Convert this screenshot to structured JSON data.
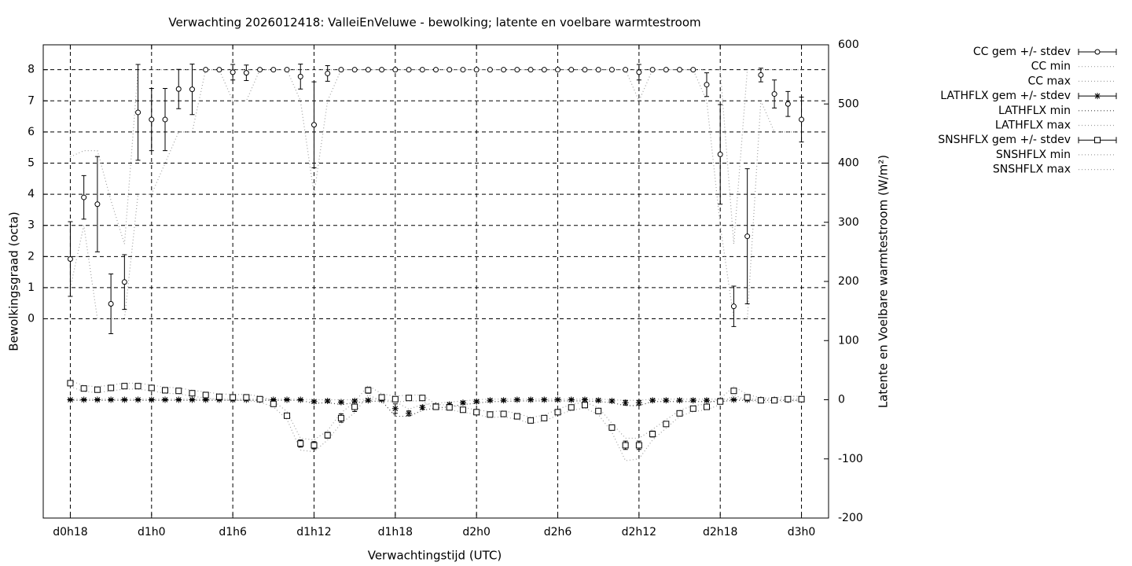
{
  "chart_data": {
    "type": "line",
    "title": "Verwachting 2026012418: ValleiEnVeluwe - bewolking; latente en voelbare warmtestroom",
    "xlabel": "Verwachtingstijd (UTC)",
    "ylabel": "Bewolkingsgraad (octa)",
    "y2label": "Latente en Voelbare warmtestroom (W/m²)",
    "xlim": [
      16,
      74
    ],
    "xticks": [
      {
        "value": 18,
        "label": "d0h18"
      },
      {
        "value": 24,
        "label": "d1h0"
      },
      {
        "value": 30,
        "label": "d1h6"
      },
      {
        "value": 36,
        "label": "d1h12"
      },
      {
        "value": 42,
        "label": "d1h18"
      },
      {
        "value": 48,
        "label": "d2h0"
      },
      {
        "value": 54,
        "label": "d2h6"
      },
      {
        "value": 60,
        "label": "d2h12"
      },
      {
        "value": 66,
        "label": "d2h18"
      },
      {
        "value": 72,
        "label": "d3h0"
      }
    ],
    "ylim": [
      -6.4,
      8.8
    ],
    "yticks": [
      0,
      1,
      2,
      3,
      4,
      5,
      6,
      7,
      8
    ],
    "y2lim": [
      -200,
      600
    ],
    "y2ticks": [
      -200,
      -100,
      0,
      100,
      200,
      300,
      400,
      500,
      600
    ],
    "grid": true,
    "x": [
      18,
      19,
      20,
      21,
      22,
      23,
      24,
      25,
      26,
      27,
      28,
      29,
      30,
      31,
      32,
      33,
      34,
      35,
      36,
      37,
      38,
      39,
      40,
      41,
      42,
      43,
      44,
      45,
      46,
      47,
      48,
      49,
      50,
      51,
      52,
      53,
      54,
      55,
      56,
      57,
      58,
      59,
      60,
      61,
      62,
      63,
      64,
      65,
      66,
      67,
      68,
      69,
      70,
      71,
      72
    ],
    "series": [
      {
        "name": "CC gem +/- stdev",
        "color": "#000000",
        "marker": "circle",
        "values": [
          1.92,
          3.9,
          3.68,
          0.48,
          1.18,
          6.63,
          6.4,
          6.4,
          7.38,
          7.37,
          8,
          8,
          7.92,
          7.9,
          8,
          8,
          8,
          7.78,
          6.23,
          7.88,
          8,
          8,
          8,
          8,
          8,
          8,
          8,
          8,
          8,
          8,
          8,
          8,
          8,
          8,
          8,
          8,
          8,
          8,
          8,
          8,
          8,
          8,
          7.92,
          8,
          8,
          8,
          8,
          7.52,
          5.28,
          0.4,
          2.65,
          7.83,
          7.22,
          6.9,
          6.4
        ],
        "errors": [
          1.2,
          0.7,
          1.53,
          0.96,
          0.88,
          1.54,
          1.0,
          1.0,
          0.63,
          0.81,
          0,
          0,
          0.25,
          0.25,
          0,
          0,
          0,
          0.4,
          1.38,
          0.25,
          0,
          0,
          0,
          0,
          0,
          0,
          0,
          0,
          0,
          0,
          0,
          0,
          0,
          0,
          0,
          0,
          0,
          0,
          0,
          0,
          0,
          0,
          0.25,
          0,
          0,
          0,
          0,
          0.38,
          1.6,
          0.65,
          2.17,
          0.22,
          0.45,
          0.4,
          0.72
        ]
      },
      {
        "name": "CC min",
        "color": "#a0a0a0",
        "values": [
          1,
          3,
          0,
          0,
          0,
          4,
          4,
          5,
          6,
          6,
          8,
          8,
          7,
          7,
          8,
          8,
          8,
          7,
          4,
          7,
          8,
          8,
          8,
          8,
          8,
          8,
          8,
          8,
          8,
          8,
          8,
          8,
          8,
          8,
          8,
          8,
          8,
          8,
          8,
          8,
          8,
          8,
          7,
          8,
          8,
          8,
          8,
          7,
          3,
          0,
          0,
          7,
          6,
          6,
          6
        ]
      },
      {
        "name": "CC max",
        "color": "#a0a0a0",
        "values": [
          5.2,
          5.4,
          5.4,
          3.8,
          2.4,
          8,
          8,
          8,
          8,
          8,
          8,
          8,
          8,
          8,
          8,
          8,
          8,
          8,
          8,
          8,
          8,
          8,
          8,
          8,
          8,
          8,
          8,
          8,
          8,
          8,
          8,
          8,
          8,
          8,
          8,
          8,
          8,
          8,
          8,
          8,
          8,
          8,
          8,
          8,
          8,
          8,
          8,
          8,
          8,
          2.4,
          8,
          8,
          8,
          8,
          8
        ]
      },
      {
        "name": "LATHFLX gem +/- stdev",
        "color": "#000000",
        "marker": "star",
        "axis": "y2",
        "values": [
          0,
          0,
          0,
          0,
          0,
          0,
          0,
          0,
          0,
          0,
          0,
          0,
          0,
          0,
          0,
          0,
          0,
          0,
          -3,
          -2,
          -4,
          -2,
          -1,
          0,
          -15,
          -23,
          -13,
          -10,
          -8,
          -5,
          -3,
          -1,
          -1,
          0,
          0,
          0,
          0,
          0,
          0,
          -1,
          -2,
          -5,
          -5,
          -1,
          -1,
          -1,
          -1,
          -1,
          -1,
          0,
          0,
          0,
          0,
          0,
          0
        ],
        "errors": [
          1,
          1,
          1,
          1,
          1,
          1,
          1,
          1,
          1,
          1,
          1,
          1,
          1,
          1,
          1,
          1,
          1,
          1,
          2,
          2,
          2,
          2,
          2,
          2,
          8,
          4,
          3,
          2,
          2,
          2,
          2,
          2,
          2,
          2,
          2,
          2,
          2,
          2,
          2,
          2,
          2,
          4,
          4,
          2,
          2,
          2,
          2,
          2,
          2,
          1,
          1,
          1,
          1,
          1,
          1
        ]
      },
      {
        "name": "LATHFLX min",
        "color": "#404040",
        "axis": "y2",
        "values": [
          -1,
          -1,
          -1,
          -1,
          -1,
          -1,
          -1,
          -1,
          -1,
          -1,
          -1,
          -1,
          -1,
          -1,
          -1,
          -1,
          -1,
          -1,
          -6,
          -5,
          -8,
          -5,
          -3,
          -2,
          -28,
          -28,
          -18,
          -14,
          -12,
          -8,
          -6,
          -3,
          -3,
          -2,
          -2,
          -2,
          -2,
          -2,
          -2,
          -3,
          -5,
          -10,
          -10,
          -3,
          -3,
          -3,
          -3,
          -3,
          -3,
          -1,
          -1,
          -1,
          -1,
          -1,
          -1
        ]
      },
      {
        "name": "LATHFLX max",
        "color": "#a0a0a0",
        "axis": "y2",
        "values": [
          1,
          1,
          1,
          1,
          1,
          1,
          1,
          1,
          1,
          1,
          1,
          1,
          1,
          1,
          1,
          1,
          1,
          1,
          0,
          0,
          0,
          0,
          1,
          1,
          -3,
          -16,
          -8,
          -6,
          -4,
          -2,
          0,
          1,
          1,
          1,
          1,
          1,
          1,
          1,
          1,
          1,
          0,
          -1,
          -1,
          1,
          1,
          1,
          1,
          1,
          1,
          1,
          1,
          1,
          1,
          1,
          1
        ]
      },
      {
        "name": "SNSHFLX gem +/- stdev",
        "color": "#000000",
        "marker": "square",
        "axis": "y2",
        "values": [
          28,
          19,
          17,
          20,
          23,
          23,
          20,
          16,
          15,
          11,
          8,
          5,
          4,
          4,
          1,
          -7,
          -27,
          -74,
          -77,
          -60,
          -31,
          -12,
          16,
          4,
          1,
          3,
          3,
          -12,
          -13,
          -17,
          -21,
          -25,
          -24,
          -28,
          -35,
          -31,
          -21,
          -13,
          -9,
          -19,
          -47,
          -77,
          -77,
          -58,
          -41,
          -23,
          -15,
          -12,
          -3,
          15,
          4,
          -1,
          -1,
          1,
          1
        ],
        "errors": [
          3,
          2,
          2,
          2,
          2,
          2,
          2,
          2,
          2,
          2,
          2,
          2,
          2,
          2,
          2,
          2,
          2,
          6,
          6,
          5,
          7,
          8,
          5,
          2,
          2,
          2,
          2,
          2,
          2,
          2,
          2,
          2,
          2,
          2,
          2,
          2,
          2,
          2,
          2,
          2,
          2,
          7,
          7,
          5,
          2,
          2,
          2,
          2,
          2,
          2,
          2,
          2,
          2,
          2,
          2
        ]
      },
      {
        "name": "SNSHFLX min",
        "color": "#a0a0a0",
        "axis": "y2",
        "values": [
          22,
          14,
          12,
          15,
          18,
          18,
          15,
          11,
          10,
          6,
          3,
          0,
          -1,
          -1,
          -4,
          -12,
          -33,
          -85,
          -88,
          -68,
          -40,
          -22,
          8,
          -2,
          -4,
          -2,
          -2,
          -16,
          -17,
          -21,
          -25,
          -30,
          -29,
          -33,
          -40,
          -36,
          -26,
          -18,
          -14,
          -25,
          -55,
          -103,
          -100,
          -68,
          -48,
          -28,
          -20,
          -17,
          -8,
          8,
          -1,
          -4,
          -4,
          -2,
          -2
        ]
      },
      {
        "name": "SNSHFLX max",
        "color": "#a0a0a0",
        "axis": "y2",
        "values": [
          32,
          24,
          22,
          25,
          28,
          28,
          25,
          21,
          20,
          16,
          13,
          10,
          9,
          9,
          6,
          -2,
          -20,
          -65,
          -68,
          -52,
          -22,
          -4,
          24,
          10,
          6,
          8,
          8,
          -8,
          -9,
          -13,
          -17,
          -20,
          -19,
          -23,
          -30,
          -26,
          -16,
          -8,
          -4,
          -13,
          -40,
          -65,
          -65,
          -50,
          -34,
          -18,
          -10,
          -7,
          2,
          22,
          9,
          3,
          3,
          6,
          6
        ]
      }
    ]
  }
}
